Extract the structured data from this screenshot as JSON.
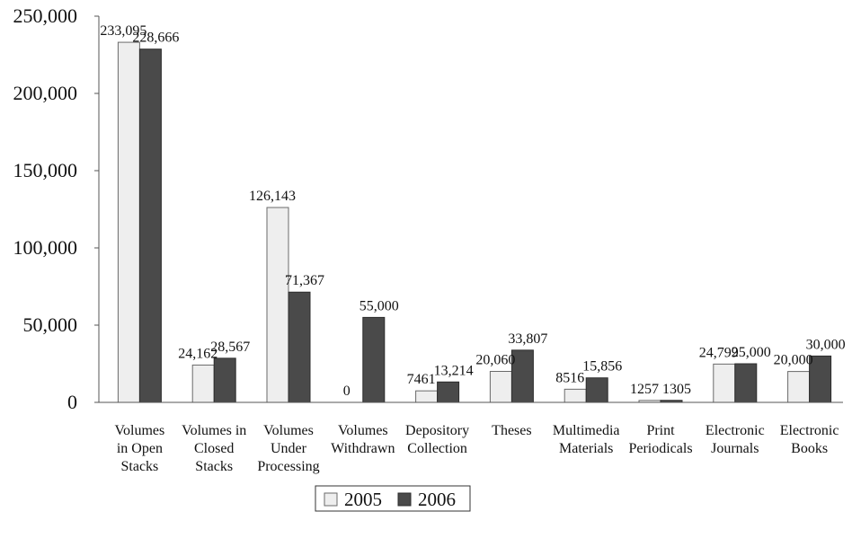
{
  "chart_data": {
    "type": "bar",
    "categories": [
      [
        "Volumes",
        "in Open",
        "Stacks"
      ],
      [
        "Volumes in",
        "Closed",
        "Stacks"
      ],
      [
        "Volumes",
        "Under",
        "Processing"
      ],
      [
        "Volumes",
        "Withdrawn"
      ],
      [
        "Depository",
        "Collection"
      ],
      [
        "Theses"
      ],
      [
        "Multimedia",
        "Materials"
      ],
      [
        "Print",
        "Periodicals"
      ],
      [
        "Electronic",
        "Journals"
      ],
      [
        "Electronic",
        "Books"
      ]
    ],
    "series": [
      {
        "name": "2005",
        "color": "#eeeeee",
        "values": [
          233095,
          24162,
          126143,
          0,
          7461,
          20060,
          8516,
          1257,
          24799,
          20000
        ],
        "labels": [
          "233,095",
          "24,162",
          "126,143",
          "0",
          "7461",
          "20,060",
          "8516",
          "1257",
          "24,799",
          "20,000"
        ]
      },
      {
        "name": "2006",
        "color": "#4a4a4a",
        "values": [
          228666,
          28567,
          71367,
          55000,
          13214,
          33807,
          15856,
          1305,
          25000,
          30000
        ],
        "labels": [
          "228,666",
          "28,567",
          "71,367",
          "55,000",
          "13,214",
          "33,807",
          "15,856",
          "1305",
          "25,000",
          "30,000"
        ]
      }
    ],
    "yticks": [
      "0",
      "50,000",
      "100,000",
      "150,000",
      "200,000",
      "250,000"
    ],
    "ylim": [
      0,
      250000
    ],
    "grid": false,
    "legend": "bottom-center"
  }
}
